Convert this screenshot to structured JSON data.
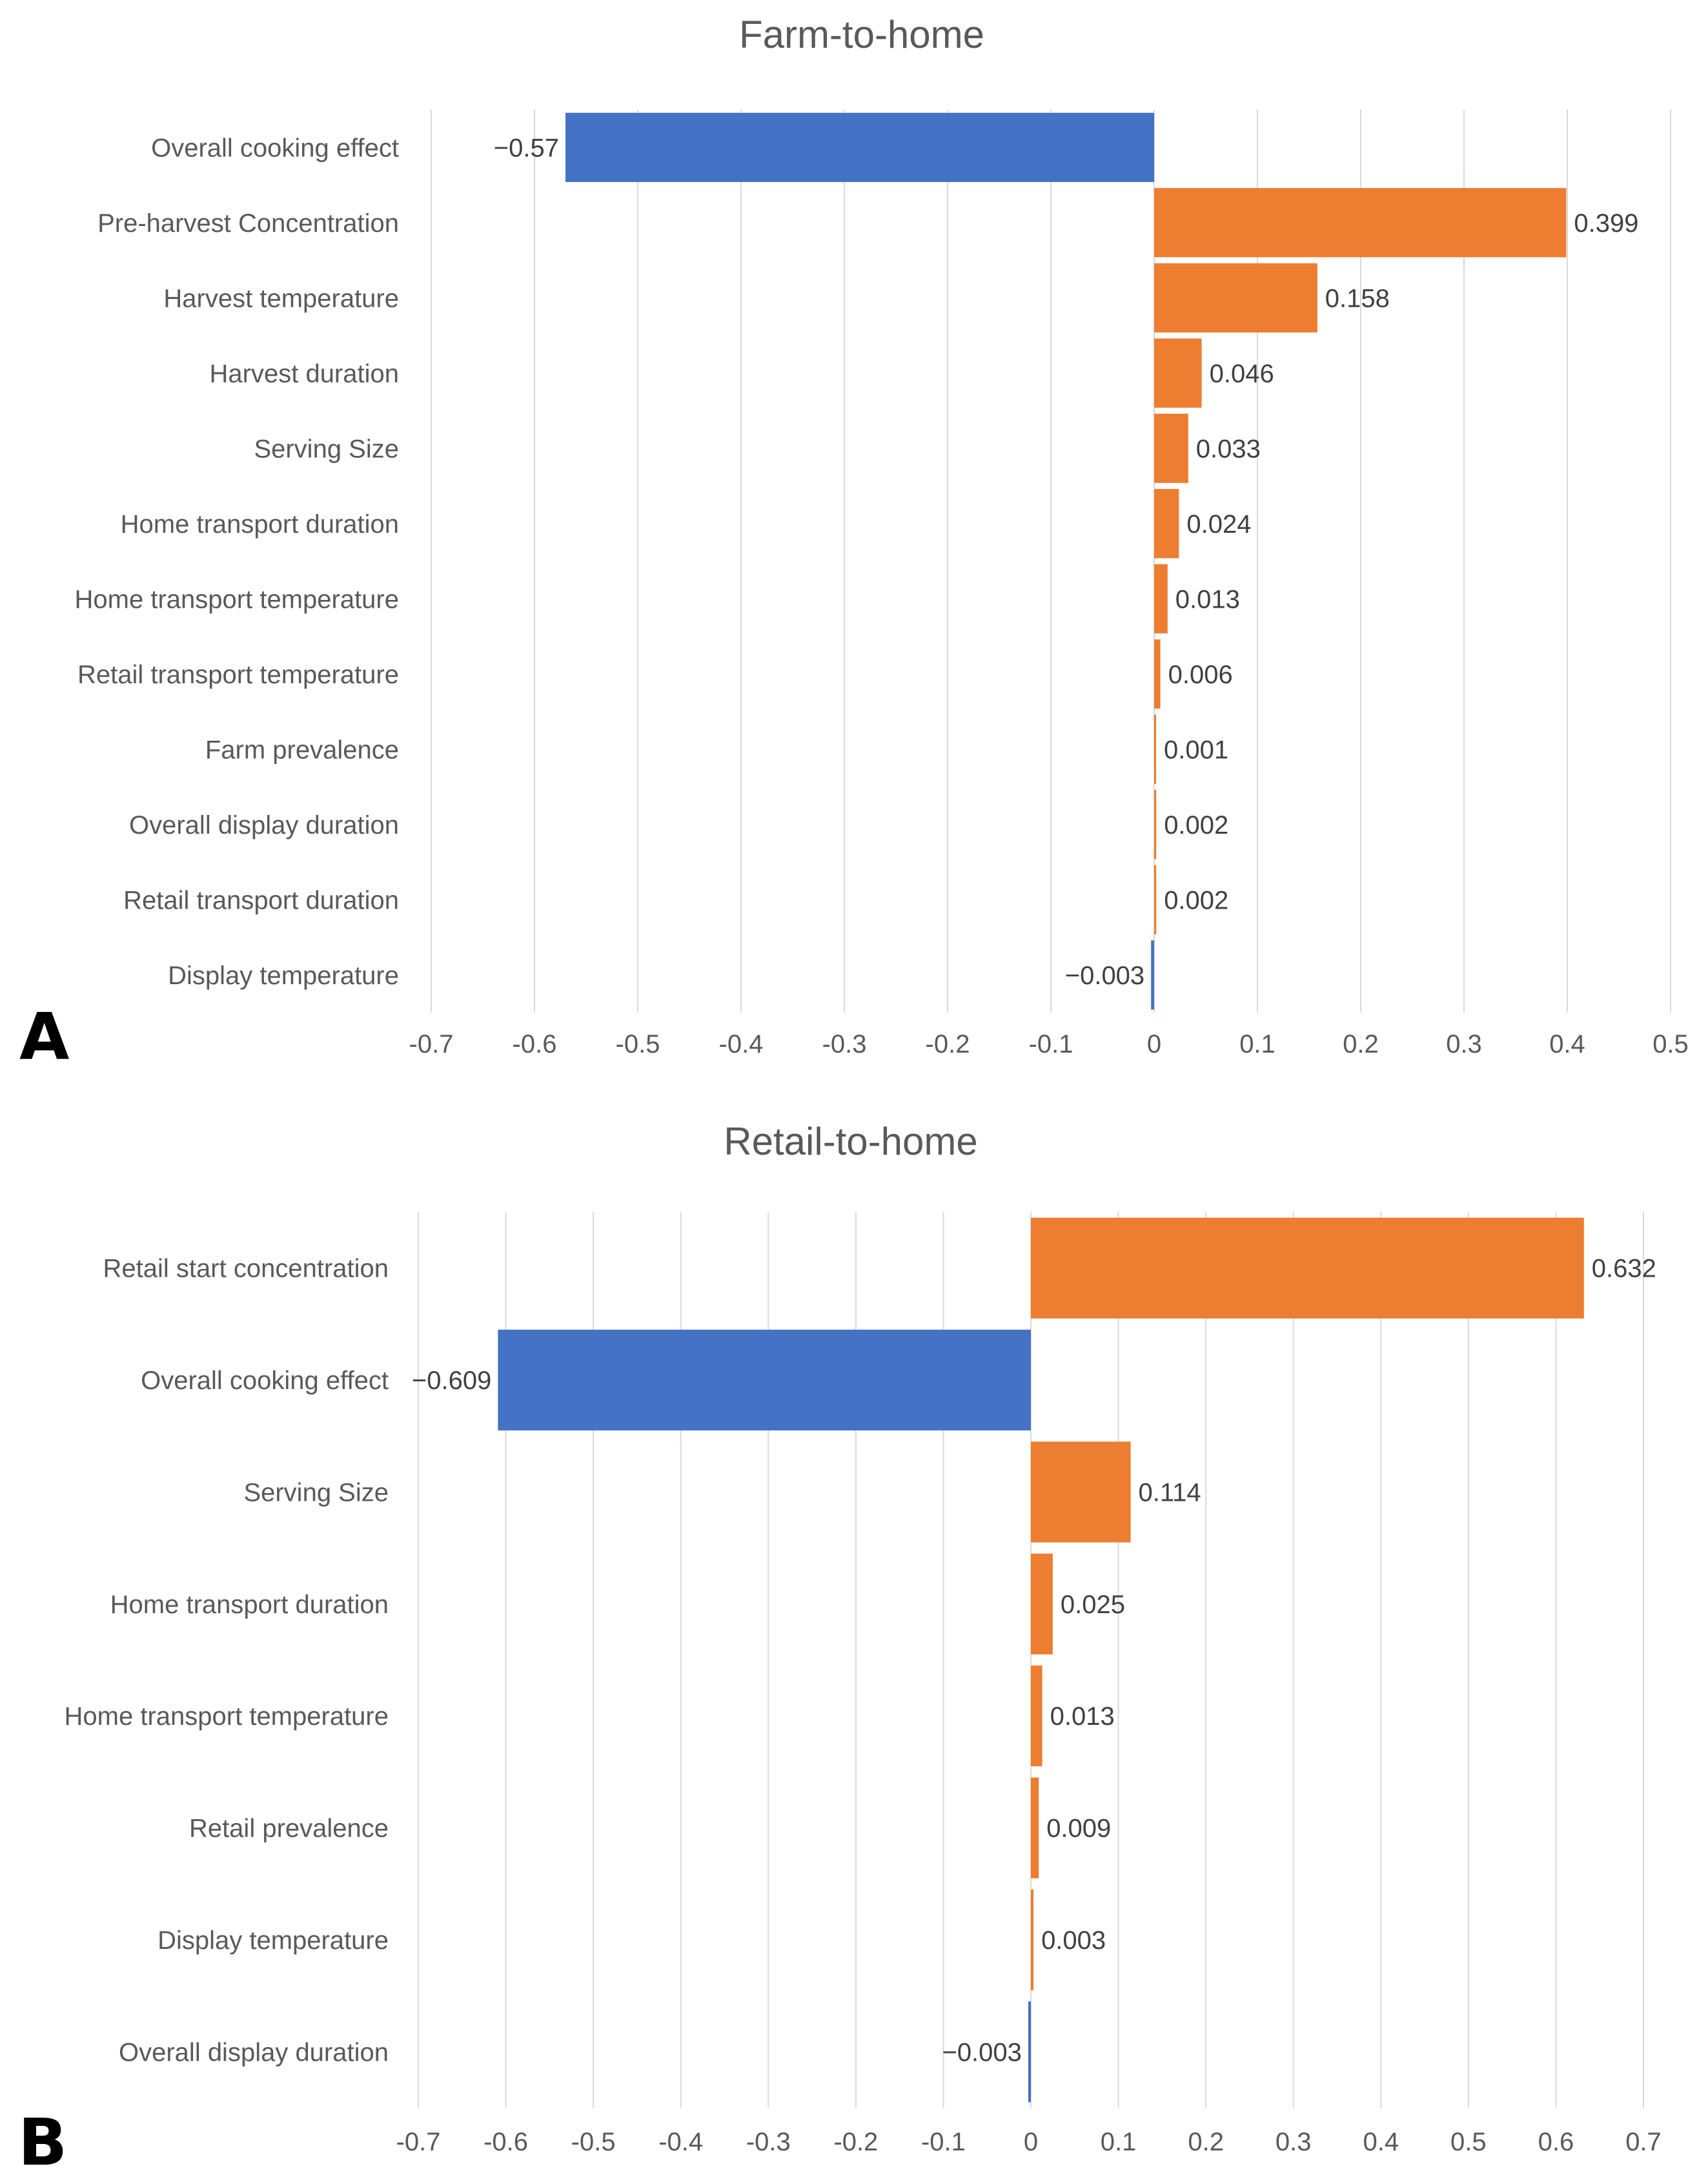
{
  "chart_data": [
    {
      "type": "bar",
      "orientation": "horizontal",
      "panel_label": "A",
      "title": "Farm-to-home",
      "categories": [
        "Overall cooking effect",
        "Pre-harvest Concentration",
        "Harvest temperature",
        "Harvest duration",
        "Serving Size",
        "Home transport duration",
        "Home transport temperature",
        "Retail transport temperature",
        "Farm prevalence",
        "Overall display duration",
        "Retail transport duration",
        "Display temperature"
      ],
      "values": [
        -0.57,
        0.399,
        0.158,
        0.046,
        0.033,
        0.024,
        0.013,
        0.006,
        0.001,
        0.002,
        0.002,
        -0.003
      ],
      "value_labels": [
        "−0.57",
        "0.399",
        "0.158",
        "0.046",
        "0.033",
        "0.024",
        "0.013",
        "0.006",
        "0.001",
        "0.002",
        "0.002",
        "−0.003"
      ],
      "xlim": [
        -0.7,
        0.5
      ],
      "xticks": [
        -0.7,
        -0.6,
        -0.5,
        -0.4,
        -0.3,
        -0.2,
        -0.1,
        0,
        0.1,
        0.2,
        0.3,
        0.4,
        0.5
      ],
      "xtick_labels": [
        "-0.7",
        "-0.6",
        "-0.5",
        "-0.4",
        "-0.3",
        "-0.2",
        "-0.1",
        "0",
        "0.1",
        "0.2",
        "0.3",
        "0.4",
        "0.5"
      ],
      "grid": true,
      "colors": {
        "positive": "#ED7D31",
        "negative": "#4472C4"
      }
    },
    {
      "type": "bar",
      "orientation": "horizontal",
      "panel_label": "B",
      "title": "Retail-to-home",
      "categories": [
        "Retail start concentration",
        "Overall cooking effect",
        "Serving Size",
        "Home transport duration",
        "Home transport temperature",
        "Retail prevalence",
        "Display temperature",
        "Overall display duration"
      ],
      "values": [
        0.632,
        -0.609,
        0.114,
        0.025,
        0.013,
        0.009,
        0.003,
        -0.003
      ],
      "value_labels": [
        "0.632",
        "−0.609",
        "0.114",
        "0.025",
        "0.013",
        "0.009",
        "0.003",
        "−0.003"
      ],
      "xlim": [
        -0.7,
        0.7
      ],
      "xticks": [
        -0.7,
        -0.6,
        -0.5,
        -0.4,
        -0.3,
        -0.2,
        -0.1,
        0,
        0.1,
        0.2,
        0.3,
        0.4,
        0.5,
        0.6,
        0.7
      ],
      "xtick_labels": [
        "-0.7",
        "-0.6",
        "-0.5",
        "-0.4",
        "-0.3",
        "-0.2",
        "-0.1",
        "0",
        "0.1",
        "0.2",
        "0.3",
        "0.4",
        "0.5",
        "0.6",
        "0.7"
      ],
      "grid": true,
      "colors": {
        "positive": "#ED7D31",
        "negative": "#4472C4"
      }
    }
  ]
}
